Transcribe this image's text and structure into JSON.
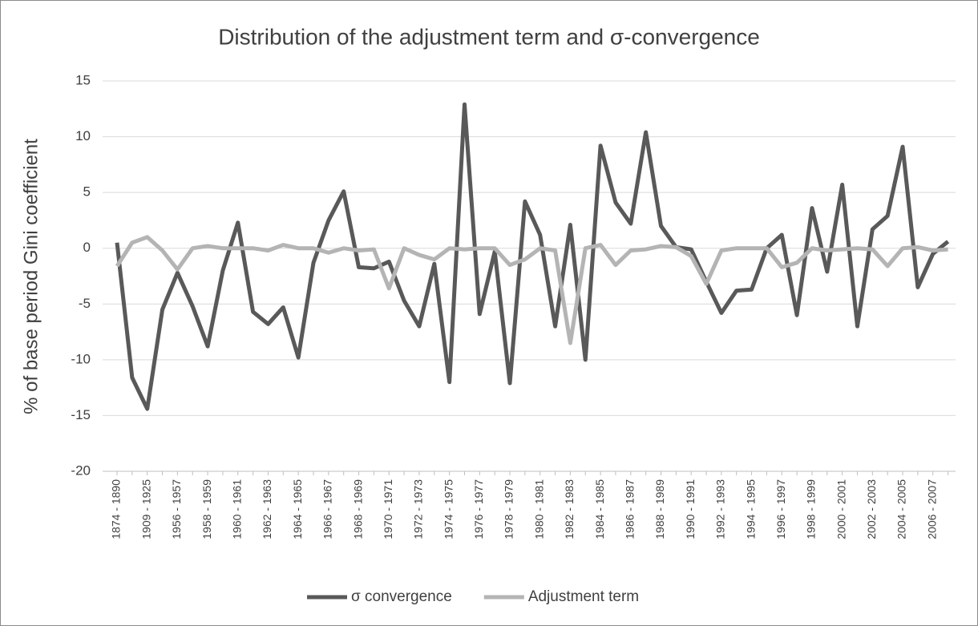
{
  "chart_data": {
    "type": "line",
    "title": "Distribution of the adjustment term and σ-convergence",
    "y_label": "% of base period Gini coefficient",
    "categories": [
      "1874 - 1890",
      null,
      "1909 - 1925",
      null,
      "1956 - 1957",
      null,
      "1958 - 1959",
      null,
      "1960 - 1961",
      null,
      "1962 - 1963",
      null,
      "1964 - 1965",
      null,
      "1966 - 1967",
      null,
      "1968 - 1969",
      null,
      "1970 - 1971",
      null,
      "1972 - 1973",
      null,
      "1974 - 1975",
      null,
      "1976 - 1977",
      null,
      "1978 - 1979",
      null,
      "1980 - 1981",
      null,
      "1982 - 1983",
      null,
      "1984 - 1985",
      null,
      "1986 - 1987",
      null,
      "1988 - 1989",
      null,
      "1990 - 1991",
      null,
      "1992 - 1993",
      null,
      "1994 - 1995",
      null,
      "1996 - 1997",
      null,
      "1998 - 1999",
      null,
      "2000 - 2001",
      null,
      "2002 - 2003",
      null,
      "2004 - 2005",
      null,
      "2006 - 2007",
      null
    ],
    "series": [
      {
        "name": "σ convergence",
        "color": "#595959",
        "values": [
          0.5,
          -11.6,
          -14.4,
          -5.5,
          -2.2,
          -5.2,
          -8.8,
          -2.0,
          2.3,
          -5.7,
          -6.8,
          -5.3,
          -9.8,
          -1.3,
          2.5,
          5.1,
          -1.7,
          -1.8,
          -1.2,
          -4.7,
          -7.0,
          -1.4,
          -12.0,
          12.9,
          -5.9,
          -0.3,
          -12.1,
          4.2,
          1.2,
          -7.0,
          2.1,
          -10.0,
          9.2,
          4.1,
          2.2,
          10.4,
          2.0,
          0.1,
          -0.1,
          -3.0,
          -5.8,
          -3.8,
          -3.7,
          0.0,
          1.2,
          -6.0,
          3.6,
          -2.1,
          5.7,
          -7.0,
          1.7,
          2.9,
          9.1,
          -3.5,
          -0.5,
          0.6
        ]
      },
      {
        "name": "Adjustment term",
        "color": "#b4b4b4",
        "values": [
          -1.6,
          0.5,
          1.0,
          -0.2,
          -1.9,
          0.0,
          0.2,
          0.0,
          0.0,
          0.0,
          -0.2,
          0.3,
          0.0,
          0.0,
          -0.4,
          0.0,
          -0.2,
          -0.1,
          -3.6,
          0.0,
          -0.6,
          -1.0,
          0.0,
          -0.1,
          0.0,
          0.0,
          -1.5,
          -1.0,
          0.0,
          -0.2,
          -8.5,
          0.0,
          0.3,
          -1.5,
          -0.2,
          -0.1,
          0.2,
          0.1,
          -0.7,
          -3.2,
          -0.2,
          0.0,
          0.0,
          0.0,
          -1.7,
          -1.3,
          0.0,
          -0.2,
          -0.1,
          0.0,
          -0.1,
          -1.6,
          0.0,
          0.1,
          -0.2,
          -0.1
        ]
      }
    ],
    "ylim": [
      -20,
      15
    ],
    "yticks": [
      -20,
      -15,
      -10,
      -5,
      0,
      5,
      10,
      15
    ],
    "grid": true,
    "legend": "bottom"
  }
}
